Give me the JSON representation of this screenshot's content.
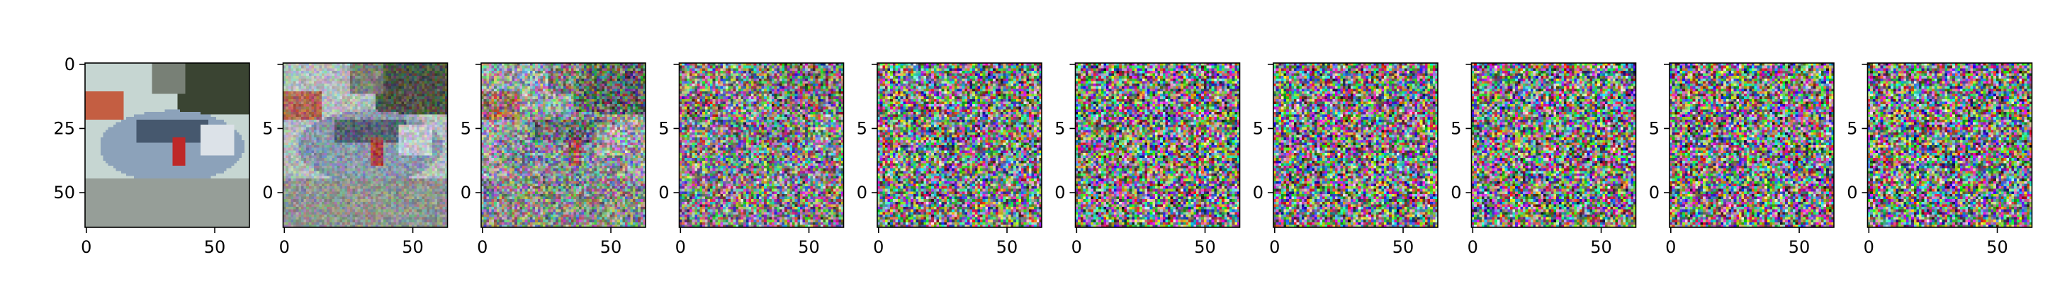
{
  "figure": {
    "panel_count": 10,
    "image_resolution": 64,
    "y_ticks": [
      "0",
      "25",
      "50"
    ],
    "x_ticks": [
      "0",
      "50"
    ],
    "clipped_y_ticks": [
      "",
      "5",
      "0"
    ],
    "panels": [
      {
        "content": "blurry car image",
        "noise_level": 0.0
      },
      {
        "content": "car image with light noise",
        "noise_level": 0.28
      },
      {
        "content": "car image with heavy noise",
        "noise_level": 0.6
      },
      {
        "content": "mostly noise with faint car shape",
        "noise_level": 0.85
      },
      {
        "content": "rgb noise",
        "noise_level": 0.96
      },
      {
        "content": "rgb noise",
        "noise_level": 1.0
      },
      {
        "content": "rgb noise",
        "noise_level": 1.0
      },
      {
        "content": "rgb noise",
        "noise_level": 1.0
      },
      {
        "content": "rgb noise",
        "noise_level": 1.0
      },
      {
        "content": "rgb noise",
        "noise_level": 1.0
      }
    ]
  }
}
